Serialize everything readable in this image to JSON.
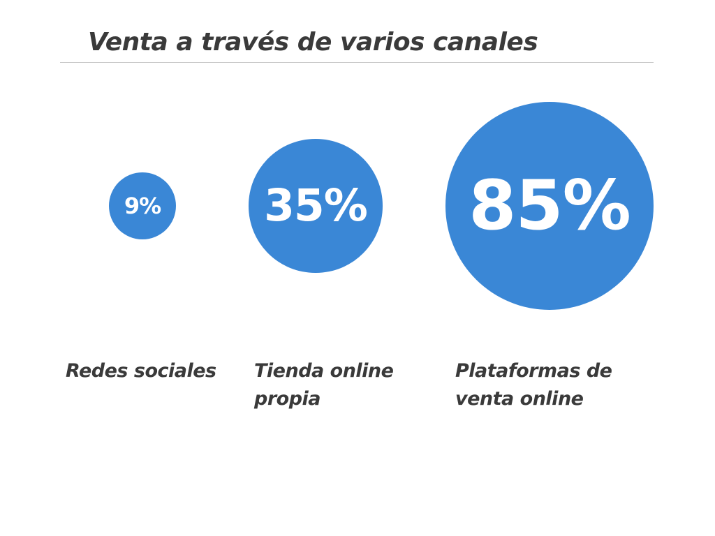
{
  "chart_data": {
    "type": "bubble",
    "title": "Venta a través de varios canales",
    "unit": "%",
    "color": "#3a87d6",
    "categories": [
      "Redes sociales",
      "Tienda online propia",
      "Plataformas de venta online"
    ],
    "values": [
      9,
      35,
      85
    ],
    "points": [
      {
        "value": 9,
        "value_label": "9%",
        "label_lines": [
          "Redes sociales"
        ]
      },
      {
        "value": 35,
        "value_label": "35%",
        "label_lines": [
          "Tienda online",
          "propia"
        ]
      },
      {
        "value": 85,
        "value_label": "85%",
        "label_lines": [
          "Plataformas de",
          "venta online"
        ]
      }
    ]
  }
}
